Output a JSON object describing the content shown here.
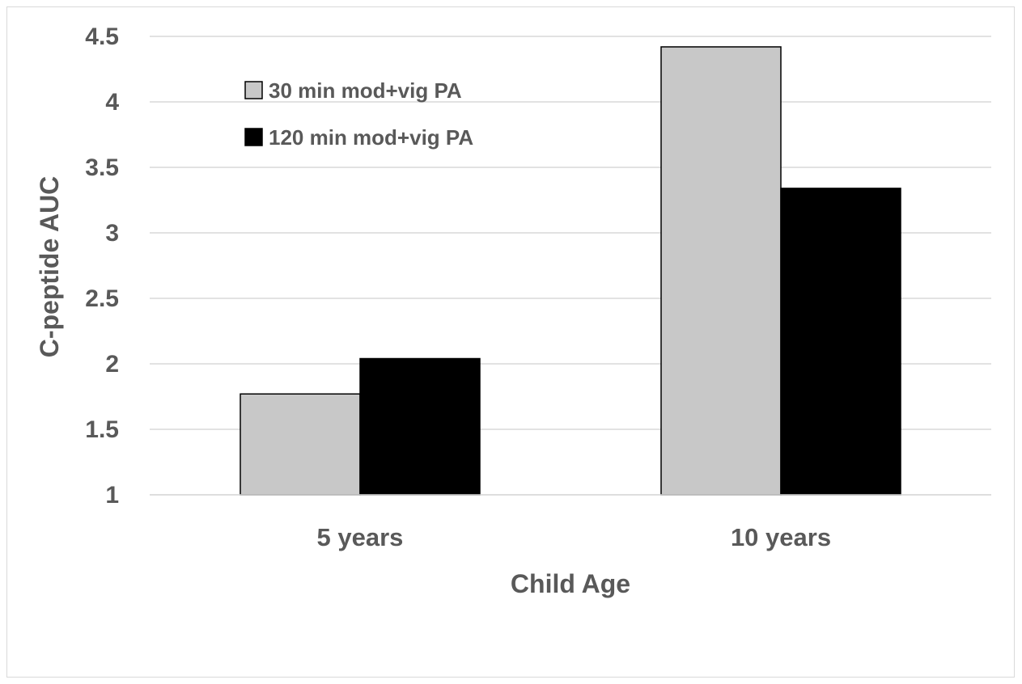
{
  "chart_data": {
    "type": "bar",
    "title": "",
    "xlabel": "Child Age",
    "ylabel": "C-peptide AUC",
    "categories": [
      "5 years",
      "10 years"
    ],
    "series": [
      {
        "name": "30 min mod+vig PA",
        "values": [
          1.77,
          4.42
        ],
        "color": "#c8c8c8"
      },
      {
        "name": "120 min mod+vig PA",
        "values": [
          2.04,
          3.34
        ],
        "color": "#000000"
      }
    ],
    "ylim": [
      1,
      4.5
    ],
    "yticks": [
      "1",
      "1.5",
      "2",
      "2.5",
      "3",
      "3.5",
      "4",
      "4.5"
    ],
    "grid": true,
    "legend": "top-left"
  }
}
